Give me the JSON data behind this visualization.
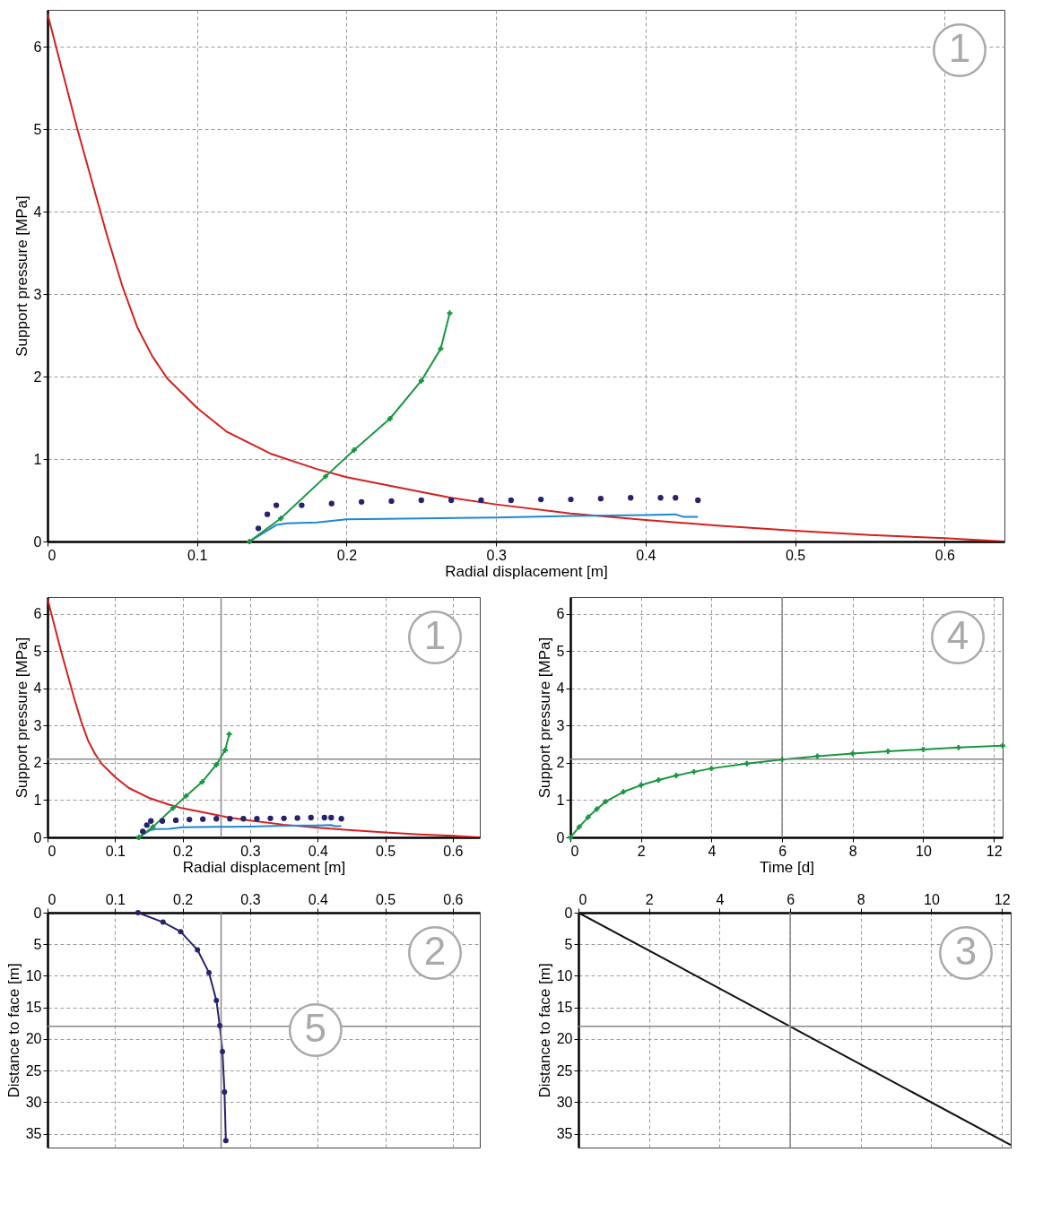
{
  "chart_data": [
    {
      "type": "line",
      "xlabel": "Radial displacement [m]",
      "ylabel": "Support pressure [MPa]",
      "xlim": [
        0,
        0.64
      ],
      "ylim": [
        0,
        6.45
      ],
      "xticks": [
        0,
        0.1,
        0.2,
        0.3,
        0.4,
        0.5,
        0.6
      ],
      "yticks": [
        0,
        1,
        2,
        3,
        4,
        5,
        6
      ],
      "grid": true,
      "annotations": [
        "1"
      ],
      "series": [
        {
          "type": "line",
          "color": "#d42020",
          "marker": "none",
          "x": [
            0,
            0.02,
            0.04,
            0.05,
            0.06,
            0.07,
            0.08,
            0.1,
            0.12,
            0.15,
            0.18,
            0.2,
            0.25,
            0.27,
            0.3,
            0.35,
            0.4,
            0.45,
            0.5,
            0.55,
            0.6,
            0.64
          ],
          "values": [
            6.4,
            5.0,
            3.7,
            3.1,
            2.6,
            2.25,
            1.98,
            1.62,
            1.33,
            1.06,
            0.88,
            0.78,
            0.6,
            0.53,
            0.45,
            0.34,
            0.26,
            0.19,
            0.13,
            0.08,
            0.04,
            0.0
          ]
        },
        {
          "type": "line",
          "color": "#1e88d2",
          "marker": "none",
          "x": [
            0.135,
            0.153,
            0.16,
            0.18,
            0.2,
            0.25,
            0.3,
            0.35,
            0.4,
            0.42,
            0.425,
            0.435
          ],
          "values": [
            0,
            0.2,
            0.22,
            0.23,
            0.27,
            0.28,
            0.29,
            0.31,
            0.32,
            0.33,
            0.3,
            0.3
          ]
        },
        {
          "type": "line",
          "color": "#1a9641",
          "marker": "cross",
          "x": [
            0.135,
            0.156,
            0.186,
            0.205,
            0.229,
            0.25,
            0.263,
            0.269
          ],
          "values": [
            0,
            0.28,
            0.79,
            1.11,
            1.49,
            1.95,
            2.34,
            2.77
          ]
        },
        {
          "type": "scatter",
          "color": "#27236b",
          "marker": "circle",
          "x": [
            0.141,
            0.147,
            0.153,
            0.17,
            0.19,
            0.21,
            0.23,
            0.25,
            0.29,
            0.31,
            0.33,
            0.35,
            0.37,
            0.39,
            0.41,
            0.42,
            0.435
          ],
          "values": [
            0.16,
            0.33,
            0.44,
            0.44,
            0.46,
            0.48,
            0.49,
            0.5,
            0.5,
            0.5,
            0.51,
            0.51,
            0.52,
            0.53,
            0.53,
            0.53,
            0.5
          ]
        },
        {
          "type": "scatter",
          "color": "#27236b",
          "marker": "circle",
          "x": [
            0.27
          ],
          "values": [
            0.5
          ]
        }
      ]
    },
    {
      "type": "line",
      "xlabel": "Radial displacement [m]",
      "ylabel": "Support pressure [MPa]",
      "xlim": [
        0,
        0.64
      ],
      "ylim": [
        0,
        6.45
      ],
      "xticks": [
        0,
        0.1,
        0.2,
        0.3,
        0.4,
        0.5,
        0.6
      ],
      "yticks": [
        0,
        1,
        2,
        3,
        4,
        5,
        6
      ],
      "grid": true,
      "annotations": [
        "1"
      ],
      "ref_lines": [
        {
          "axis": "x",
          "value": 0.257,
          "color": "#888888"
        },
        {
          "axis": "y",
          "value": 2.1,
          "color": "#888888"
        }
      ],
      "series": [
        {
          "type": "line",
          "color": "#d42020",
          "marker": "none",
          "x": [
            0,
            0.02,
            0.04,
            0.05,
            0.06,
            0.07,
            0.08,
            0.1,
            0.12,
            0.15,
            0.18,
            0.2,
            0.25,
            0.27,
            0.3,
            0.35,
            0.4,
            0.45,
            0.5,
            0.55,
            0.6,
            0.64
          ],
          "values": [
            6.4,
            5.0,
            3.7,
            3.1,
            2.6,
            2.25,
            1.98,
            1.62,
            1.33,
            1.06,
            0.88,
            0.78,
            0.6,
            0.53,
            0.45,
            0.34,
            0.26,
            0.19,
            0.13,
            0.08,
            0.04,
            0.0
          ]
        },
        {
          "type": "line",
          "color": "#1e88d2",
          "marker": "none",
          "x": [
            0.135,
            0.153,
            0.16,
            0.18,
            0.2,
            0.25,
            0.3,
            0.35,
            0.4,
            0.42,
            0.425,
            0.435
          ],
          "values": [
            0,
            0.2,
            0.22,
            0.23,
            0.27,
            0.28,
            0.29,
            0.31,
            0.32,
            0.33,
            0.3,
            0.3
          ]
        },
        {
          "type": "line",
          "color": "#1a9641",
          "marker": "cross",
          "x": [
            0.135,
            0.156,
            0.186,
            0.205,
            0.229,
            0.25,
            0.263,
            0.269
          ],
          "values": [
            0,
            0.28,
            0.79,
            1.11,
            1.49,
            1.95,
            2.34,
            2.77
          ]
        },
        {
          "type": "scatter",
          "color": "#27236b",
          "marker": "circle",
          "x": [
            0.141,
            0.147,
            0.153,
            0.17,
            0.19,
            0.21,
            0.23,
            0.25,
            0.29,
            0.31,
            0.33,
            0.35,
            0.37,
            0.39,
            0.41,
            0.42,
            0.435
          ],
          "values": [
            0.16,
            0.33,
            0.44,
            0.44,
            0.46,
            0.48,
            0.49,
            0.5,
            0.5,
            0.5,
            0.51,
            0.51,
            0.52,
            0.53,
            0.53,
            0.53,
            0.5
          ]
        },
        {
          "type": "scatter",
          "color": "#27236b",
          "marker": "circle",
          "x": [
            0.27
          ],
          "values": [
            0.5
          ]
        }
      ]
    },
    {
      "type": "line",
      "xlabel": "Time [d]",
      "ylabel": "Support pressure [MPa]",
      "xlim": [
        0,
        12.25
      ],
      "ylim": [
        0,
        6.45
      ],
      "xticks": [
        0,
        2,
        4,
        6,
        8,
        10,
        12
      ],
      "yticks": [
        0,
        1,
        2,
        3,
        4,
        5,
        6
      ],
      "grid": true,
      "annotations": [
        "4"
      ],
      "ref_lines": [
        {
          "axis": "x",
          "value": 6,
          "color": "#888888"
        },
        {
          "axis": "y",
          "value": 2.1,
          "color": "#888888"
        }
      ],
      "series": [
        {
          "type": "line",
          "color": "#1a9641",
          "marker": "cross",
          "x": [
            0,
            0.25,
            0.5,
            0.75,
            1,
            1.5,
            2,
            2.5,
            3,
            3.5,
            4,
            5,
            6,
            7,
            8,
            9,
            10,
            11,
            12.25
          ],
          "values": [
            0,
            0.28,
            0.54,
            0.76,
            0.96,
            1.22,
            1.4,
            1.54,
            1.66,
            1.76,
            1.85,
            1.98,
            2.09,
            2.18,
            2.25,
            2.31,
            2.36,
            2.41,
            2.46
          ]
        }
      ]
    },
    {
      "type": "line",
      "ylabel": "Distance to face [m]",
      "xlim": [
        0,
        0.64
      ],
      "xticks": [
        0,
        0.1,
        0.2,
        0.3,
        0.4,
        0.5,
        0.6
      ],
      "ylim": [
        37.2,
        0
      ],
      "yticks": [
        0,
        5,
        10,
        15,
        20,
        25,
        30,
        35
      ],
      "grid": true,
      "annotations": [
        "2",
        "5"
      ],
      "ref_lines": [
        {
          "axis": "x",
          "value": 0.257,
          "color": "#888888"
        },
        {
          "axis": "y",
          "value": 18,
          "color": "#888888"
        }
      ],
      "series": [
        {
          "type": "line",
          "color": "#27236b",
          "marker": "circle",
          "x": [
            0.134,
            0.171,
            0.197,
            0.222,
            0.239,
            0.25,
            0.255,
            0.259,
            0.262,
            0.264
          ],
          "values": [
            0,
            1.5,
            3.0,
            5.9,
            9.5,
            13.9,
            17.9,
            22,
            28.4,
            36.1
          ]
        }
      ]
    },
    {
      "type": "line",
      "ylabel": "Distance to face [m]",
      "xlim": [
        0,
        12.25
      ],
      "xticks": [
        0,
        2,
        4,
        6,
        8,
        10,
        12
      ],
      "ylim": [
        37.2,
        0
      ],
      "yticks": [
        0,
        5,
        10,
        15,
        20,
        25,
        30,
        35
      ],
      "grid": true,
      "annotations": [
        "3"
      ],
      "ref_lines": [
        {
          "axis": "x",
          "value": 6,
          "color": "#888888"
        },
        {
          "axis": "y",
          "value": 18,
          "color": "#888888"
        }
      ],
      "series": [
        {
          "type": "line",
          "color": "#111111",
          "marker": "none",
          "x": [
            0,
            12.25
          ],
          "values": [
            0,
            36.8
          ]
        }
      ]
    }
  ]
}
